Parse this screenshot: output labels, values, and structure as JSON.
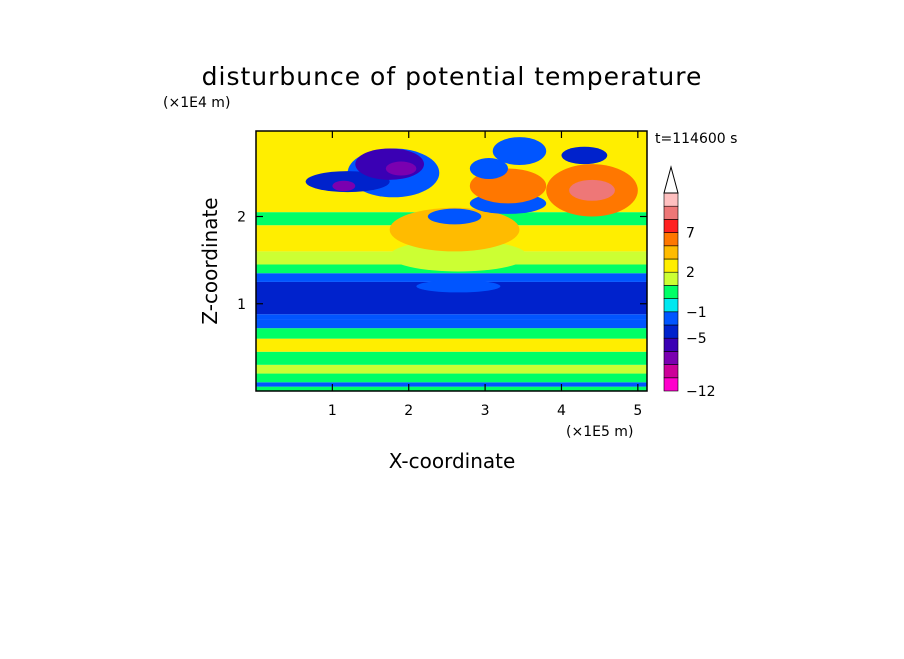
{
  "chart_data": {
    "type": "heatmap",
    "title": "disturbunce of potential temperature",
    "time_label": "t=114600 s",
    "xlabel": "X-coordinate",
    "ylabel": "Z-coordinate",
    "x_unit": "(×1E5 m)",
    "y_unit": "(×1E4 m)",
    "xlim": [
      0,
      5.12
    ],
    "ylim": [
      0,
      2.98
    ],
    "x_ticks": [
      1,
      2,
      3,
      4,
      5
    ],
    "y_ticks": [
      1,
      2
    ],
    "x_tick_labels": [
      "1",
      "2",
      "3",
      "4",
      "5"
    ],
    "y_tick_labels": [
      "1",
      "2"
    ],
    "colorbar": {
      "levels": [
        -12,
        -11,
        -9,
        -7,
        -5,
        -3,
        -1,
        0,
        1,
        2,
        3,
        5,
        7,
        9,
        11
      ],
      "labels": [
        {
          "value": 7,
          "text": "7"
        },
        {
          "value": 2,
          "text": "2"
        },
        {
          "value": -1,
          "text": "−1"
        },
        {
          "value": -5,
          "text": "−5"
        },
        {
          "value": -12,
          "text": "−12"
        }
      ],
      "colors": [
        "#ff00cc",
        "#cc0099",
        "#7a00b0",
        "#3a00b4",
        "#0022cc",
        "#0055ff",
        "#00e8f0",
        "#00ff66",
        "#ccff33",
        "#ffee00",
        "#ffbb00",
        "#ff7700",
        "#ff2020",
        "#ee7777",
        "#ffc0c0"
      ],
      "extend": "max"
    },
    "bands": [
      {
        "z": [
          0.0,
          0.05
        ],
        "value": 0.5
      },
      {
        "z": [
          0.05,
          0.1
        ],
        "value": -1.5
      },
      {
        "z": [
          0.1,
          0.2
        ],
        "value": 0.5
      },
      {
        "z": [
          0.2,
          0.3
        ],
        "value": 1.5
      },
      {
        "z": [
          0.3,
          0.45
        ],
        "value": 0.5
      },
      {
        "z": [
          0.45,
          0.6
        ],
        "value": 2.2
      },
      {
        "z": [
          0.6,
          0.72
        ],
        "value": 0.5
      },
      {
        "z": [
          0.72,
          0.82
        ],
        "value": -1.5
      },
      {
        "z": [
          0.82,
          0.88
        ],
        "value": -3
      },
      {
        "z": [
          0.88,
          1.25
        ],
        "value": -4
      },
      {
        "z": [
          1.25,
          1.35
        ],
        "value": -1.5
      },
      {
        "z": [
          1.35,
          1.45
        ],
        "value": 0.5
      },
      {
        "z": [
          1.45,
          1.6
        ],
        "value": 1.5
      },
      {
        "z": [
          1.6,
          1.9
        ],
        "value": 2.5
      },
      {
        "z": [
          1.9,
          2.05
        ],
        "value": 0.5
      },
      {
        "z": [
          2.05,
          2.98
        ],
        "value": 2.5
      }
    ],
    "features": [
      {
        "x": 2.65,
        "z": 1.2,
        "rx": 0.55,
        "rz": 0.07,
        "value": -1.5
      },
      {
        "x": 2.65,
        "z": 1.55,
        "rx": 0.9,
        "rz": 0.18,
        "value": 1.5
      },
      {
        "x": 2.6,
        "z": 1.85,
        "rx": 0.85,
        "rz": 0.25,
        "value": 4
      },
      {
        "x": 1.8,
        "z": 2.5,
        "rx": 0.6,
        "rz": 0.28,
        "value": -1.5
      },
      {
        "x": 1.2,
        "z": 2.4,
        "rx": 0.55,
        "rz": 0.12,
        "value": -4
      },
      {
        "x": 1.75,
        "z": 2.6,
        "rx": 0.45,
        "rz": 0.18,
        "value": -6
      },
      {
        "x": 1.9,
        "z": 2.55,
        "rx": 0.2,
        "rz": 0.08,
        "value": -8
      },
      {
        "x": 1.15,
        "z": 2.35,
        "rx": 0.15,
        "rz": 0.06,
        "value": -8
      },
      {
        "x": 2.6,
        "z": 2.0,
        "rx": 0.35,
        "rz": 0.09,
        "value": -2
      },
      {
        "x": 3.3,
        "z": 2.15,
        "rx": 0.5,
        "rz": 0.12,
        "value": -1.5
      },
      {
        "x": 3.3,
        "z": 2.35,
        "rx": 0.5,
        "rz": 0.2,
        "value": 6
      },
      {
        "x": 3.05,
        "z": 2.55,
        "rx": 0.25,
        "rz": 0.12,
        "value": -1.5
      },
      {
        "x": 4.4,
        "z": 2.3,
        "rx": 0.6,
        "rz": 0.3,
        "value": 6
      },
      {
        "x": 4.4,
        "z": 2.3,
        "rx": 0.3,
        "rz": 0.12,
        "value": 10
      },
      {
        "x": 3.45,
        "z": 2.75,
        "rx": 0.35,
        "rz": 0.16,
        "value": -1.5
      },
      {
        "x": 4.3,
        "z": 2.7,
        "rx": 0.3,
        "rz": 0.1,
        "value": -4
      }
    ]
  }
}
